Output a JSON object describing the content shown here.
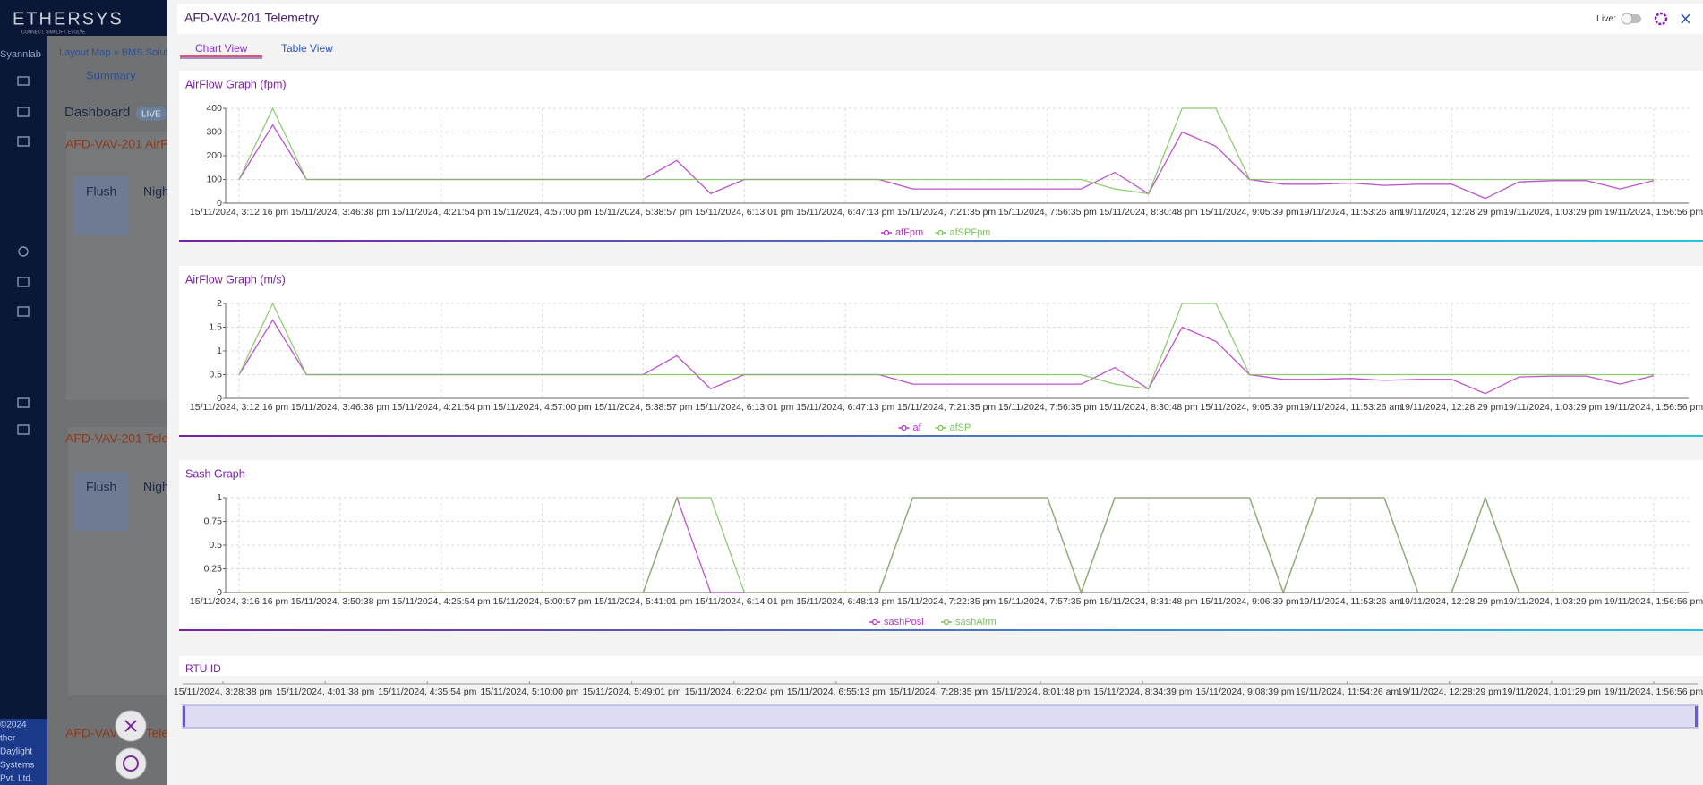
{
  "sidebar": {
    "brand": "ETHERSYS",
    "tagline": "CONNECT. SIMPLIFY. EVOLVE",
    "org": "Syannlab",
    "footer": [
      "©2024",
      "ther",
      "Daylight",
      "Systems",
      "Pvt. Ltd."
    ]
  },
  "background": {
    "breadcrumb": "Layout Map » BMS Soluti",
    "tab": "Summary",
    "dashboard": "Dashboard",
    "live": "LIVE",
    "panels": [
      {
        "title": "AFD-VAV-201 AirF",
        "toggles": [
          "Flush",
          "Nigh"
        ]
      },
      {
        "title": "AFD-VAV-201 Tele",
        "toggles": [
          "Flush",
          "Nigh"
        ]
      },
      {
        "title": "AFD-VAV-201 Tele"
      }
    ]
  },
  "modal": {
    "title": "AFD-VAV-201 Telemetry",
    "live_label": "Live:",
    "tabs": [
      "Chart View",
      "Table View"
    ],
    "next_card_title": "RTU ID"
  },
  "chart_data": [
    {
      "type": "line",
      "title": "AirFlow Graph (fpm)",
      "categories": [
        "15/11/2024, 3:12:16 pm",
        null,
        null,
        "15/11/2024, 3:46:38 pm",
        null,
        null,
        "15/11/2024, 4:21:54 pm",
        null,
        null,
        "15/11/2024, 4:57:00 pm",
        null,
        null,
        "15/11/2024, 5:38:57 pm",
        null,
        null,
        "15/11/2024, 6:13:01 pm",
        null,
        null,
        "15/11/2024, 6:47:13 pm",
        null,
        null,
        "15/11/2024, 7:21:35 pm",
        null,
        null,
        "15/11/2024, 7:56:35 pm",
        null,
        null,
        "15/11/2024, 8:30:48 pm",
        null,
        null,
        "15/11/2024, 9:05:39 pm",
        null,
        null,
        "19/11/2024, 11:53:26 am",
        null,
        null,
        "19/11/2024, 12:28:29 pm",
        null,
        null,
        "19/11/2024, 1:03:29 pm",
        null,
        null,
        "19/11/2024, 1:56:56 pm"
      ],
      "series": [
        {
          "name": "afFpm",
          "color": "#b534c4",
          "values": [
            100,
            330,
            100,
            100,
            100,
            100,
            100,
            100,
            100,
            100,
            100,
            100,
            100,
            180,
            40,
            100,
            100,
            100,
            100,
            100,
            60,
            60,
            60,
            60,
            60,
            60,
            130,
            40,
            300,
            240,
            100,
            80,
            80,
            85,
            75,
            80,
            80,
            20,
            90,
            95,
            95,
            60,
            95
          ]
        },
        {
          "name": "afSPFpm",
          "color": "#7cc35a",
          "values": [
            100,
            400,
            100,
            100,
            100,
            100,
            100,
            100,
            100,
            100,
            100,
            100,
            100,
            100,
            100,
            100,
            100,
            100,
            100,
            100,
            100,
            100,
            100,
            100,
            100,
            100,
            60,
            40,
            400,
            400,
            100,
            100,
            100,
            100,
            100,
            100,
            100,
            100,
            100,
            100,
            100,
            100,
            100
          ]
        }
      ],
      "ylim": [
        0,
        400
      ],
      "yticks": [
        0,
        100,
        200,
        300,
        400
      ],
      "grid": true
    },
    {
      "type": "line",
      "title": "AirFlow Graph (m/s)",
      "categories": [
        "15/11/2024, 3:12:16 pm",
        null,
        null,
        "15/11/2024, 3:46:38 pm",
        null,
        null,
        "15/11/2024, 4:21:54 pm",
        null,
        null,
        "15/11/2024, 4:57:00 pm",
        null,
        null,
        "15/11/2024, 5:38:57 pm",
        null,
        null,
        "15/11/2024, 6:13:01 pm",
        null,
        null,
        "15/11/2024, 6:47:13 pm",
        null,
        null,
        "15/11/2024, 7:21:35 pm",
        null,
        null,
        "15/11/2024, 7:56:35 pm",
        null,
        null,
        "15/11/2024, 8:30:48 pm",
        null,
        null,
        "15/11/2024, 9:05:39 pm",
        null,
        null,
        "19/11/2024, 11:53:26 am",
        null,
        null,
        "19/11/2024, 12:28:29 pm",
        null,
        null,
        "19/11/2024, 1:03:29 pm",
        null,
        null,
        "19/11/2024, 1:56:56 pm"
      ],
      "series": [
        {
          "name": "af",
          "color": "#b534c4",
          "values": [
            0.5,
            1.65,
            0.5,
            0.5,
            0.5,
            0.5,
            0.5,
            0.5,
            0.5,
            0.5,
            0.5,
            0.5,
            0.5,
            0.9,
            0.2,
            0.5,
            0.5,
            0.5,
            0.5,
            0.5,
            0.3,
            0.3,
            0.3,
            0.3,
            0.3,
            0.3,
            0.65,
            0.2,
            1.5,
            1.2,
            0.5,
            0.4,
            0.4,
            0.42,
            0.38,
            0.4,
            0.4,
            0.1,
            0.45,
            0.47,
            0.47,
            0.3,
            0.48
          ]
        },
        {
          "name": "afSP",
          "color": "#7cc35a",
          "values": [
            0.5,
            2,
            0.5,
            0.5,
            0.5,
            0.5,
            0.5,
            0.5,
            0.5,
            0.5,
            0.5,
            0.5,
            0.5,
            0.5,
            0.5,
            0.5,
            0.5,
            0.5,
            0.5,
            0.5,
            0.5,
            0.5,
            0.5,
            0.5,
            0.5,
            0.5,
            0.3,
            0.2,
            2,
            2,
            0.5,
            0.5,
            0.5,
            0.5,
            0.5,
            0.5,
            0.5,
            0.5,
            0.5,
            0.5,
            0.5,
            0.5,
            0.5
          ]
        }
      ],
      "ylim": [
        0,
        2
      ],
      "yticks": [
        0,
        0.5,
        1,
        1.5,
        2
      ],
      "grid": true
    },
    {
      "type": "line",
      "title": "Sash Graph",
      "categories": [
        "15/11/2024, 3:16:16 pm",
        null,
        null,
        "15/11/2024, 3:50:38 pm",
        null,
        null,
        "15/11/2024, 4:25:54 pm",
        null,
        null,
        "15/11/2024, 5:00:57 pm",
        null,
        null,
        "15/11/2024, 5:41:01 pm",
        null,
        null,
        "15/11/2024, 6:14:01 pm",
        null,
        null,
        "15/11/2024, 6:48:13 pm",
        null,
        null,
        "15/11/2024, 7:22:35 pm",
        null,
        null,
        "15/11/2024, 7:57:35 pm",
        null,
        null,
        "15/11/2024, 8:31:48 pm",
        null,
        null,
        "15/11/2024, 9:06:39 pm",
        null,
        null,
        "19/11/2024, 11:53:26 am",
        null,
        null,
        "19/11/2024, 12:28:29 pm",
        null,
        null,
        "19/11/2024, 1:03:29 pm",
        null,
        null,
        "19/11/2024, 1:56:56 pm"
      ],
      "series": [
        {
          "name": "sashPosi",
          "color": "#b534c4",
          "values": [
            0,
            0,
            0,
            0,
            0,
            0,
            0,
            0,
            0,
            0,
            0,
            0,
            0,
            1,
            0,
            0,
            0,
            0,
            0,
            0,
            1,
            1,
            1,
            1,
            1,
            0,
            1,
            1,
            1,
            1,
            1,
            0,
            1,
            1,
            1,
            0,
            0,
            1,
            0,
            0,
            0,
            0,
            0
          ]
        },
        {
          "name": "sashAlrm",
          "color": "#7cc35a",
          "values": [
            0,
            0,
            0,
            0,
            0,
            0,
            0,
            0,
            0,
            0,
            0,
            0,
            0,
            1,
            1,
            0,
            0,
            0,
            0,
            0,
            1,
            1,
            1,
            1,
            1,
            0,
            1,
            1,
            1,
            1,
            1,
            0,
            1,
            1,
            1,
            0,
            0,
            1,
            0,
            0,
            0,
            0,
            0
          ]
        }
      ],
      "ylim": [
        0,
        1
      ],
      "yticks": [
        0,
        0.25,
        0.5,
        0.75,
        1
      ],
      "grid": true
    }
  ],
  "navigator": {
    "labels": [
      "15/11/2024, 3:28:38 pm",
      "15/11/2024, 4:01:38 pm",
      "15/11/2024, 4:35:54 pm",
      "15/11/2024, 5:10:00 pm",
      "15/11/2024, 5:49:01 pm",
      "15/11/2024, 6:22:04 pm",
      "15/11/2024, 6:55:13 pm",
      "15/11/2024, 7:28:35 pm",
      "15/11/2024, 8:01:48 pm",
      "15/11/2024, 8:34:39 pm",
      "15/11/2024, 9:08:39 pm",
      "19/11/2024, 11:54:26 am",
      "19/11/2024, 12:28:29 pm",
      "19/11/2024, 1:01:29 pm",
      "19/11/2024, 1:56:56 pm"
    ]
  }
}
